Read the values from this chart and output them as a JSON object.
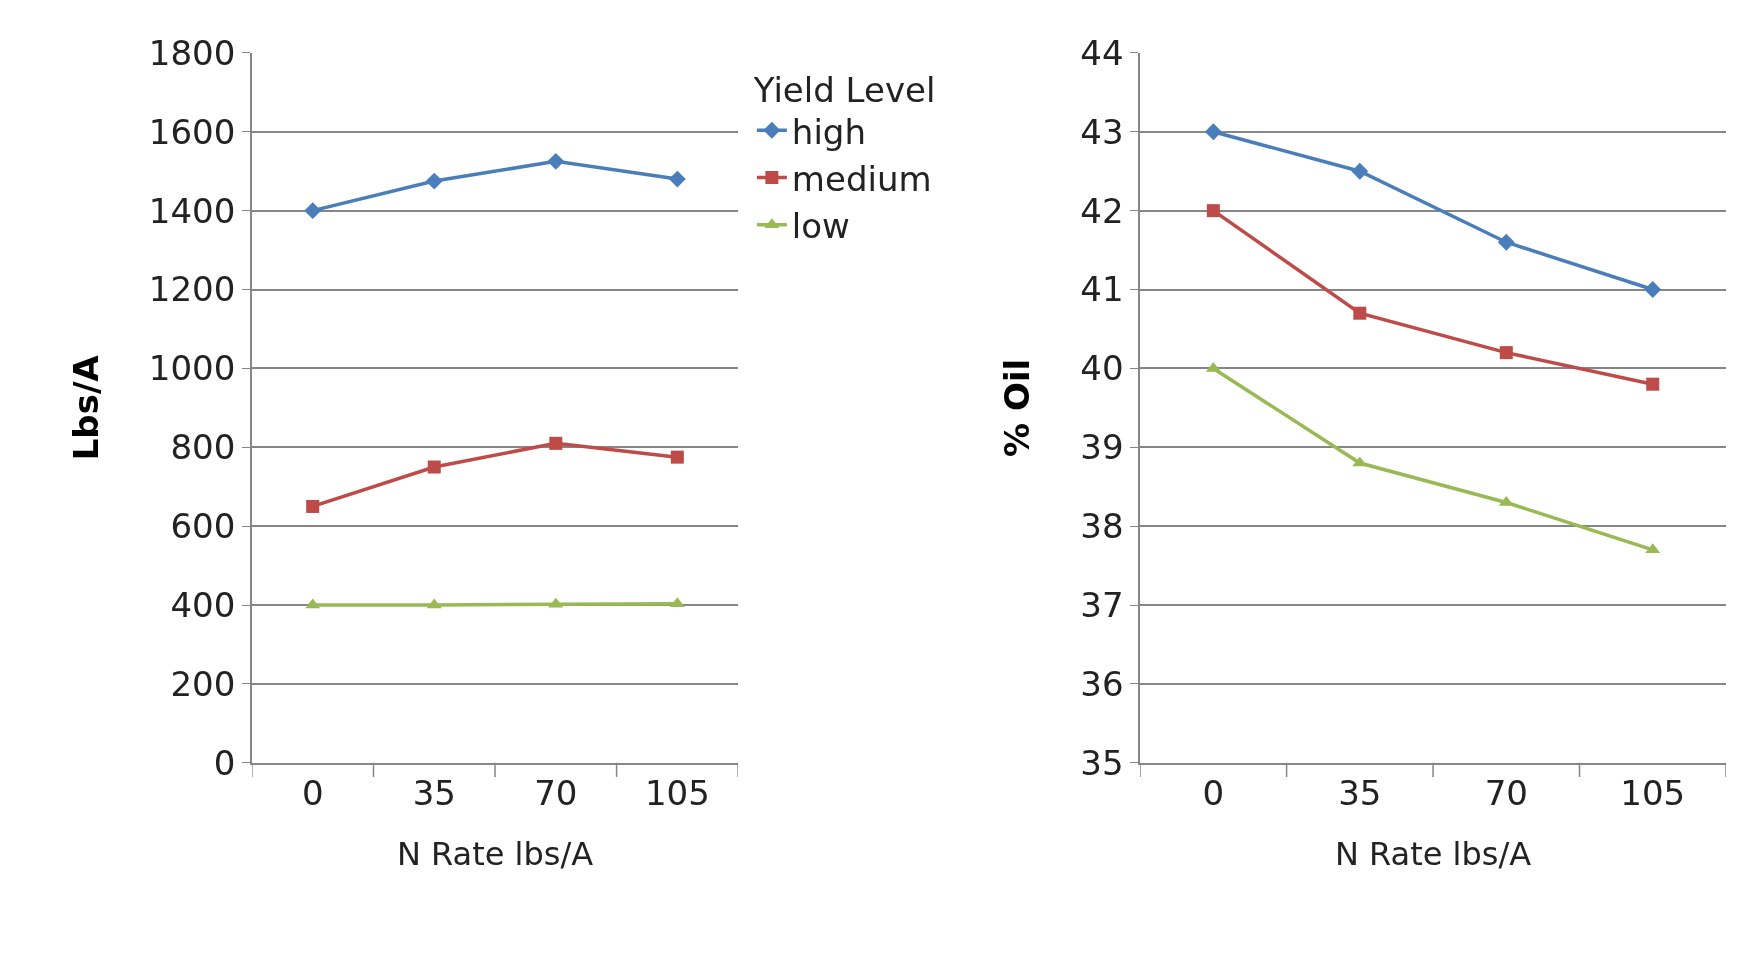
{
  "chart_data": [
    {
      "type": "line",
      "xlabel": "N Rate lbs/A",
      "ylabel": "Lbs/A",
      "legend_title": "Yield Level",
      "legend": "right",
      "categories": [
        "0",
        "35",
        "70",
        "105"
      ],
      "series": [
        {
          "name": "high",
          "color": "#4a7ebb",
          "marker": "diamond",
          "values": [
            1400,
            1475,
            1525,
            1480
          ]
        },
        {
          "name": "medium",
          "color": "#be4b48",
          "marker": "square",
          "values": [
            650,
            750,
            810,
            775
          ]
        },
        {
          "name": "low",
          "color": "#98b954",
          "marker": "triangle",
          "values": [
            400,
            400,
            402,
            403
          ]
        }
      ],
      "ylim": [
        0,
        1800
      ],
      "yticks": [
        0,
        200,
        400,
        600,
        800,
        1000,
        1200,
        1400,
        1600,
        1800
      ],
      "grid": "y"
    },
    {
      "type": "line",
      "xlabel": "N Rate lbs/A",
      "ylabel": "% Oil",
      "categories": [
        "0",
        "35",
        "70",
        "105"
      ],
      "series": [
        {
          "color": "#4a7ebb",
          "marker": "diamond",
          "values": [
            43,
            42.5,
            41.6,
            41
          ]
        },
        {
          "color": "#be4b48",
          "marker": "square",
          "values": [
            42,
            40.7,
            40.2,
            39.8
          ]
        },
        {
          "color": "#98b954",
          "marker": "triangle",
          "values": [
            40,
            38.8,
            38.3,
            37.7
          ]
        }
      ],
      "ylim": [
        35,
        44
      ],
      "yticks": [
        35,
        36,
        37,
        38,
        39,
        40,
        41,
        42,
        43,
        44
      ],
      "grid": "y"
    }
  ]
}
